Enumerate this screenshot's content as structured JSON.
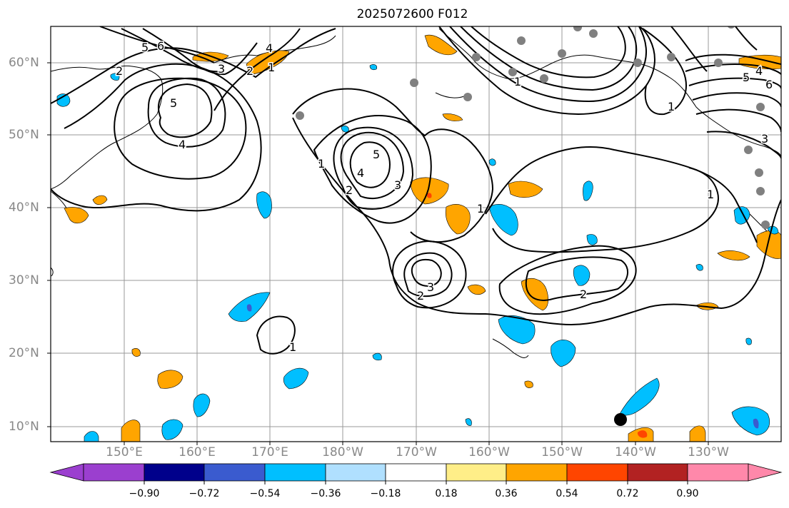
{
  "title": "2025072600 F012",
  "lat_labels": [
    "60°N",
    "50°N",
    "40°N",
    "30°N",
    "20°N",
    "10°N"
  ],
  "lon_labels": [
    "150°E",
    "160°E",
    "170°E",
    "180°W",
    "170°W",
    "160°W",
    "150°W",
    "140°W",
    "130°W"
  ],
  "contour_labels": [
    "6",
    "5",
    "4",
    "2",
    "1",
    "3",
    "5",
    "4",
    "2",
    "1",
    "5",
    "4",
    "3",
    "2",
    "1",
    "3",
    "2",
    "1",
    "2",
    "5",
    "4",
    "3",
    "6",
    "1",
    "1",
    "1"
  ],
  "colorbar": {
    "labels": [
      "−0.90",
      "−0.72",
      "−0.54",
      "−0.36",
      "−0.18",
      "0.18",
      "0.36",
      "0.54",
      "0.72",
      "0.90"
    ],
    "colors": [
      "#9b3fcf",
      "#00008b",
      "#3a5bcf",
      "#00bfff",
      "#b0e0ff",
      "#ffffff",
      "#ffee88",
      "#ffa500",
      "#ff4500",
      "#b22222",
      "#ff88aa"
    ]
  },
  "colors": {
    "blue_fill": "#00bfff",
    "orange_fill": "#ffa500",
    "contour": "#000000",
    "station": "#808080"
  }
}
